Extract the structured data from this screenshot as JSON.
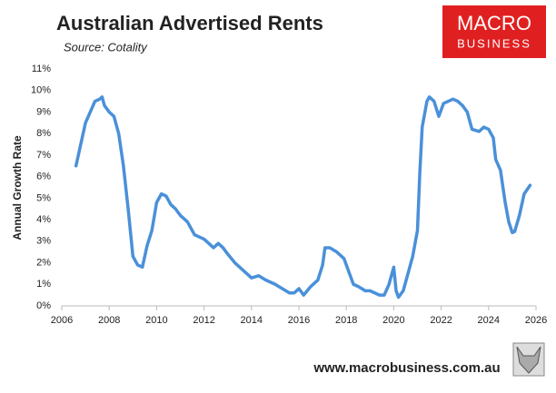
{
  "chart_data": {
    "type": "line",
    "title": "Australian Advertised Rents",
    "subtitle": "Source: Cotality",
    "ylabel": "Annual Growth Rate",
    "logo": [
      "MACRO",
      "BUSINESS"
    ],
    "website": "www.macrobusiness.com.au",
    "x": [
      2006.6,
      2006.8,
      2007.0,
      2007.2,
      2007.4,
      2007.6,
      2007.7,
      2007.8,
      2008.0,
      2008.2,
      2008.4,
      2008.6,
      2008.8,
      2009.0,
      2009.2,
      2009.4,
      2009.6,
      2009.8,
      2010.0,
      2010.2,
      2010.4,
      2010.6,
      2010.8,
      2011.0,
      2011.3,
      2011.6,
      2012.0,
      2012.2,
      2012.4,
      2012.6,
      2012.8,
      2013.0,
      2013.3,
      2013.6,
      2014.0,
      2014.3,
      2014.6,
      2015.0,
      2015.3,
      2015.6,
      2015.8,
      2016.0,
      2016.2,
      2016.5,
      2016.8,
      2017.0,
      2017.1,
      2017.3,
      2017.6,
      2017.9,
      2018.1,
      2018.3,
      2018.5,
      2018.8,
      2019.0,
      2019.2,
      2019.4,
      2019.6,
      2019.8,
      2020.0,
      2020.1,
      2020.2,
      2020.4,
      2020.6,
      2020.8,
      2021.0,
      2021.1,
      2021.2,
      2021.4,
      2021.5,
      2021.7,
      2021.9,
      2022.1,
      2022.3,
      2022.5,
      2022.7,
      2022.9,
      2023.1,
      2023.3,
      2023.6,
      2023.8,
      2024.0,
      2024.2,
      2024.3,
      2024.5,
      2024.7,
      2024.85,
      2025.0,
      2025.1,
      2025.3,
      2025.5,
      2025.75
    ],
    "series": [
      {
        "name": "Annual Growth Rate",
        "color": "#4a90d9",
        "values": [
          6.5,
          7.5,
          8.5,
          9.0,
          9.5,
          9.6,
          9.7,
          9.3,
          9.0,
          8.8,
          8.0,
          6.5,
          4.5,
          2.3,
          1.9,
          1.8,
          2.8,
          3.5,
          4.8,
          5.2,
          5.1,
          4.7,
          4.5,
          4.2,
          3.9,
          3.3,
          3.1,
          2.9,
          2.7,
          2.9,
          2.7,
          2.4,
          2.0,
          1.7,
          1.3,
          1.4,
          1.2,
          1.0,
          0.8,
          0.6,
          0.6,
          0.8,
          0.5,
          0.9,
          1.2,
          1.9,
          2.7,
          2.7,
          2.5,
          2.2,
          1.6,
          1.0,
          0.9,
          0.7,
          0.7,
          0.6,
          0.5,
          0.5,
          1.0,
          1.8,
          0.7,
          0.4,
          0.7,
          1.5,
          2.3,
          3.5,
          6.2,
          8.3,
          9.5,
          9.7,
          9.5,
          8.8,
          9.4,
          9.5,
          9.6,
          9.5,
          9.3,
          9.0,
          8.2,
          8.1,
          8.3,
          8.2,
          7.8,
          6.8,
          6.3,
          4.8,
          3.9,
          3.4,
          3.45,
          4.2,
          5.2,
          5.6
        ]
      }
    ],
    "xlim": [
      2006,
      2026
    ],
    "xticks": [
      2006,
      2008,
      2010,
      2012,
      2014,
      2016,
      2018,
      2020,
      2022,
      2024,
      2026
    ],
    "ylim": [
      0,
      11
    ],
    "yticks": [
      {
        "value": 0,
        "label": "0%"
      },
      {
        "value": 1,
        "label": "1%"
      },
      {
        "value": 2,
        "label": "2%"
      },
      {
        "value": 3,
        "label": "3%"
      },
      {
        "value": 4,
        "label": "4%"
      },
      {
        "value": 5,
        "label": "5%"
      },
      {
        "value": 6,
        "label": "6%"
      },
      {
        "value": 7,
        "label": "7%"
      },
      {
        "value": 8,
        "label": "8%"
      },
      {
        "value": 9,
        "label": "9%"
      },
      {
        "value": 10,
        "label": "10%"
      },
      {
        "value": 11,
        "label": "11%"
      }
    ],
    "grid": false
  }
}
